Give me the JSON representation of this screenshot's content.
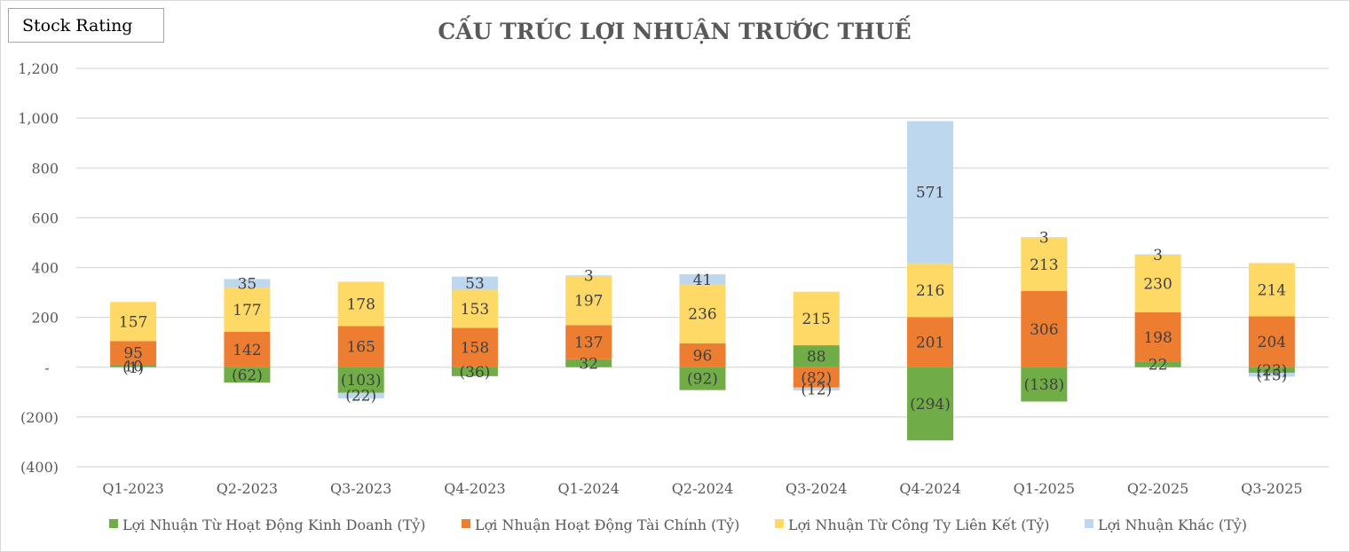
{
  "badge": "Stock Rating",
  "chart_data": {
    "type": "bar",
    "stacked": true,
    "title": "CẤU TRÚC LỢI NHUẬN TRƯỚC THUẾ",
    "xlabel": "",
    "ylabel": "",
    "ylim": [
      -400,
      1200
    ],
    "yticks": [
      -400,
      -200,
      0,
      200,
      400,
      600,
      800,
      1000,
      1200
    ],
    "ytick_labels": [
      "(400)",
      "(200)",
      "-",
      "200",
      "400",
      "600",
      "800",
      "1,000",
      "1,200"
    ],
    "grid": true,
    "legend_position": "bottom",
    "categories": [
      "Q1-2023",
      "Q2-2023",
      "Q3-2023",
      "Q4-2023",
      "Q1-2024",
      "Q2-2024",
      "Q3-2024",
      "Q4-2024",
      "Q1-2025",
      "Q2-2025",
      "Q3-2025"
    ],
    "series": [
      {
        "name": "Lợi Nhuận Từ Hoạt Động Kinh Doanh (Tỷ)",
        "color": "#70ad47",
        "values": [
          10,
          -62,
          -103,
          -36,
          32,
          -92,
          88,
          -294,
          -138,
          22,
          -23
        ],
        "labels": [
          "10",
          "(62)",
          "(103)",
          "(36)",
          "32",
          "(92)",
          "88",
          "(294)",
          "(138)",
          "22",
          "(23)"
        ]
      },
      {
        "name": "Lợi Nhuận Hoạt Động Tài Chính (Tỷ)",
        "color": "#ed7d31",
        "values": [
          95,
          142,
          165,
          158,
          137,
          96,
          -82,
          201,
          306,
          198,
          204
        ],
        "labels": [
          "95",
          "142",
          "165",
          "158",
          "137",
          "96",
          "(82)",
          "201",
          "306",
          "198",
          "204"
        ]
      },
      {
        "name": "Lợi Nhuận Từ Công Ty Liên Kết (Tỷ)",
        "color": "#ffd966",
        "values": [
          157,
          177,
          178,
          153,
          197,
          236,
          215,
          216,
          213,
          230,
          214
        ],
        "labels": [
          "157",
          "177",
          "178",
          "153",
          "197",
          "236",
          "215",
          "216",
          "213",
          "230",
          "214"
        ]
      },
      {
        "name": "Lợi Nhuận Khác (Tỷ)",
        "color": "#bdd7ee",
        "values": [
          -1,
          35,
          -22,
          53,
          3,
          41,
          -12,
          571,
          3,
          3,
          -15
        ],
        "labels": [
          "(1)",
          "35",
          "(22)",
          "53",
          "3",
          "41",
          "(12)",
          "571",
          "3",
          "3",
          "(15)"
        ]
      }
    ]
  }
}
